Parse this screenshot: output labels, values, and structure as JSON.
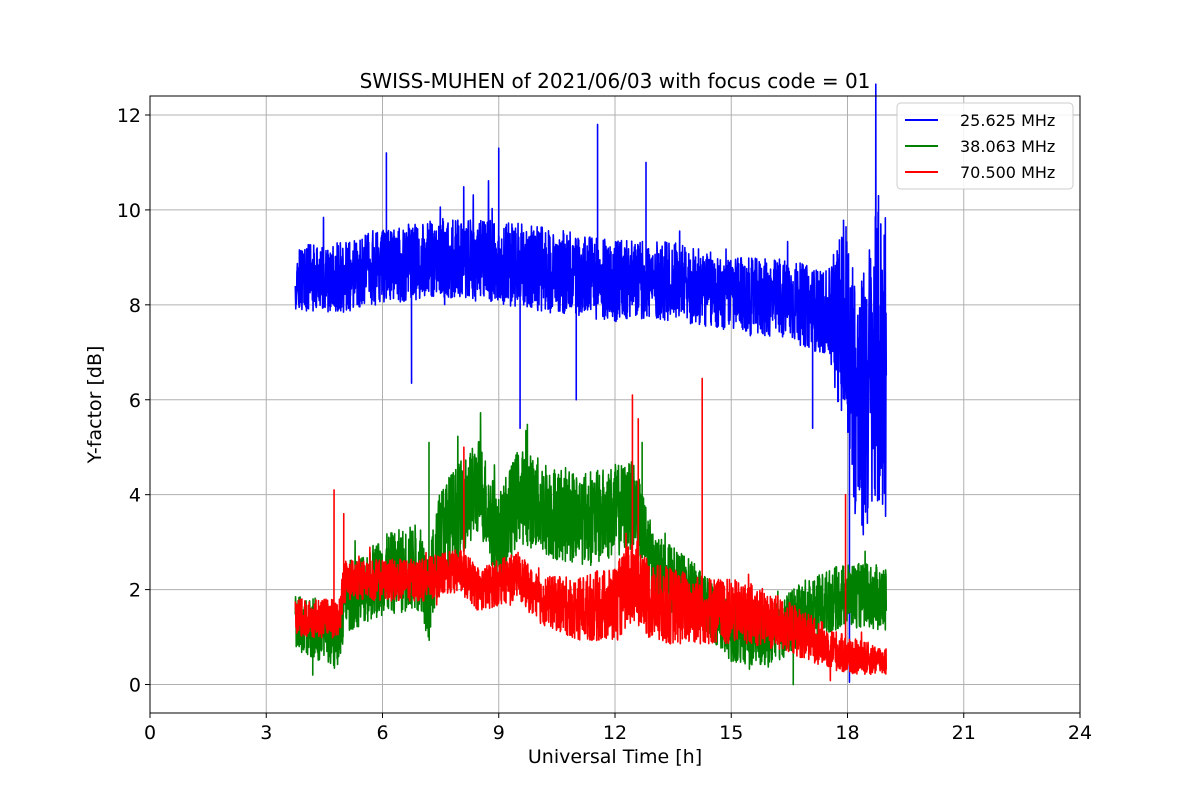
{
  "chart_data": {
    "type": "line",
    "title": "SWISS-MUHEN of 2021/06/03 with focus code = 01",
    "xlabel": "Universal Time [h]",
    "ylabel": "Y-factor [dB]",
    "xlim": [
      0,
      24
    ],
    "ylim": [
      -0.6,
      12.4
    ],
    "xticks": [
      0,
      3,
      6,
      9,
      12,
      15,
      18,
      21,
      24
    ],
    "yticks": [
      0,
      2,
      4,
      6,
      8,
      10,
      12
    ],
    "grid": true,
    "legend_position": "top-right",
    "series": [
      {
        "name": "25.625 MHz",
        "color": "#0000ff",
        "baseline": [
          [
            3.75,
            8.6
          ],
          [
            4.5,
            8.5
          ],
          [
            6,
            8.8
          ],
          [
            7.5,
            9.0
          ],
          [
            9,
            8.9
          ],
          [
            10.5,
            8.7
          ],
          [
            12,
            8.5
          ],
          [
            13.5,
            8.5
          ],
          [
            15,
            8.2
          ],
          [
            16.5,
            8.1
          ],
          [
            17.5,
            7.8
          ],
          [
            18.0,
            7.5
          ],
          [
            18.3,
            5.5
          ],
          [
            18.6,
            6.5
          ],
          [
            19.0,
            7.0
          ]
        ],
        "spread": [
          [
            3.75,
            0.7
          ],
          [
            6,
            0.8
          ],
          [
            10,
            0.9
          ],
          [
            15,
            0.8
          ],
          [
            17.5,
            0.9
          ],
          [
            18.0,
            2.5
          ],
          [
            19.0,
            3.5
          ]
        ],
        "peaks": [
          [
            6.1,
            11.2
          ],
          [
            6.75,
            6.35
          ],
          [
            9.0,
            11.3
          ],
          [
            9.55,
            5.4
          ],
          [
            11.55,
            11.8
          ],
          [
            11.0,
            6.0
          ],
          [
            12.8,
            11.0
          ],
          [
            17.1,
            5.4
          ],
          [
            18.05,
            0.05
          ],
          [
            18.8,
            10.3
          ]
        ]
      },
      {
        "name": "38.063 MHz",
        "color": "#008000",
        "baseline": [
          [
            3.75,
            1.3
          ],
          [
            4.9,
            1.0
          ],
          [
            5.0,
            1.8
          ],
          [
            6,
            2.3
          ],
          [
            7.0,
            2.5
          ],
          [
            7.2,
            1.8
          ],
          [
            7.5,
            3.2
          ],
          [
            8.5,
            4.2
          ],
          [
            9.0,
            3.0
          ],
          [
            9.5,
            4.0
          ],
          [
            10.5,
            3.6
          ],
          [
            11.5,
            3.5
          ],
          [
            12.5,
            3.8
          ],
          [
            13.0,
            2.4
          ],
          [
            14.0,
            2.0
          ],
          [
            15.0,
            1.1
          ],
          [
            16.0,
            1.0
          ],
          [
            17.0,
            1.6
          ],
          [
            18.0,
            1.9
          ],
          [
            19.0,
            1.8
          ]
        ],
        "spread": [
          [
            3.75,
            0.6
          ],
          [
            7.5,
            1.0
          ],
          [
            12,
            1.0
          ],
          [
            14,
            0.6
          ],
          [
            19,
            0.7
          ]
        ],
        "peaks": [
          [
            7.2,
            5.1
          ],
          [
            9.7,
            5.35
          ],
          [
            12.7,
            5.1
          ],
          [
            16.6,
            0.0
          ],
          [
            4.2,
            0.2
          ]
        ]
      },
      {
        "name": "70.500 MHz",
        "color": "#ff0000",
        "baseline": [
          [
            3.75,
            1.4
          ],
          [
            4.9,
            1.4
          ],
          [
            5.0,
            2.2
          ],
          [
            7.0,
            2.2
          ],
          [
            8.0,
            2.4
          ],
          [
            8.5,
            2.0
          ],
          [
            9.5,
            2.3
          ],
          [
            10.0,
            1.8
          ],
          [
            11.0,
            1.6
          ],
          [
            12.0,
            1.7
          ],
          [
            12.5,
            2.2
          ],
          [
            13.0,
            1.7
          ],
          [
            14.0,
            1.6
          ],
          [
            15.5,
            1.5
          ],
          [
            16.5,
            1.2
          ],
          [
            17.5,
            0.8
          ],
          [
            18.0,
            0.6
          ],
          [
            19.0,
            0.5
          ]
        ],
        "spread": [
          [
            3.75,
            0.4
          ],
          [
            10,
            0.5
          ],
          [
            12.5,
            0.9
          ],
          [
            16,
            0.6
          ],
          [
            19,
            0.3
          ]
        ],
        "peaks": [
          [
            4.75,
            4.1
          ],
          [
            5.0,
            3.6
          ],
          [
            8.1,
            5.0
          ],
          [
            12.45,
            6.1
          ],
          [
            14.25,
            6.45
          ],
          [
            17.95,
            4.0
          ],
          [
            12.6,
            5.6
          ]
        ]
      }
    ]
  }
}
